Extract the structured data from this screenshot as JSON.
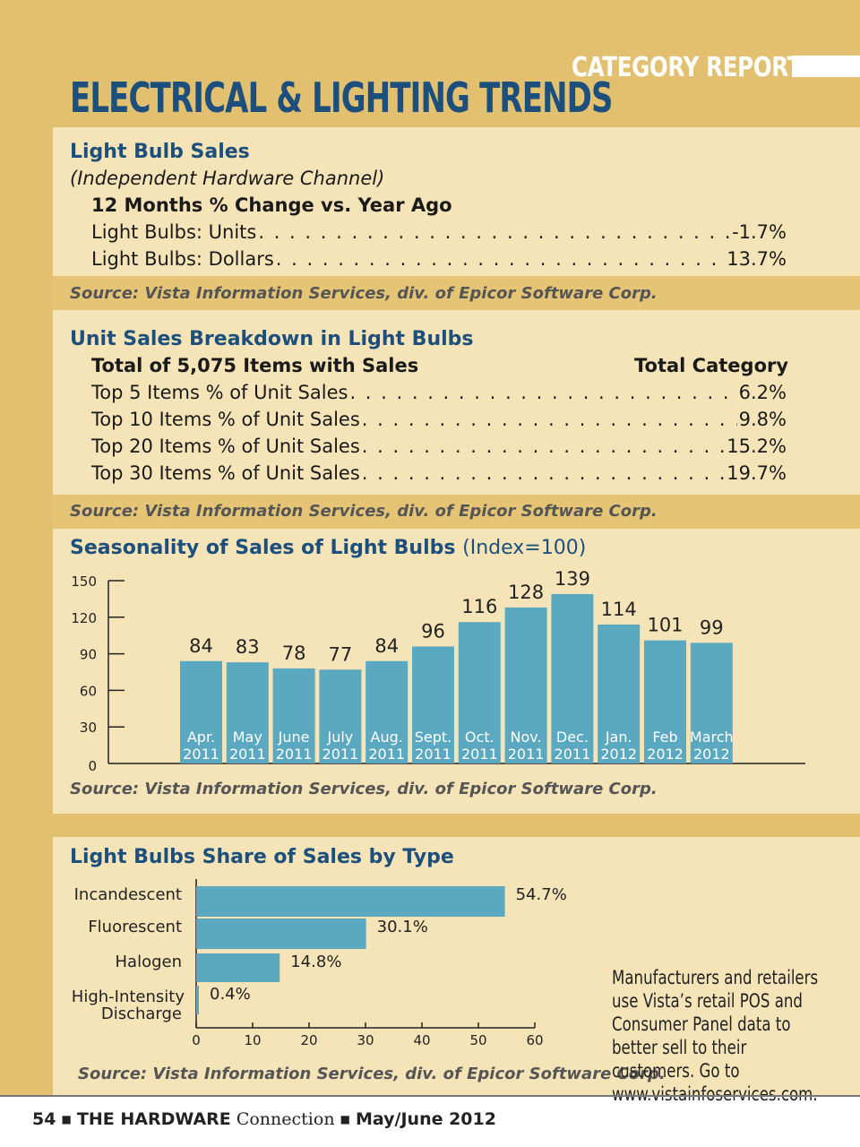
{
  "header": {
    "section_label": "CATEGORY REPORT",
    "title": "ELECTRICAL & LIGHTING TRENDS"
  },
  "bulb_sales": {
    "heading": "Light Bulb Sales",
    "subheading": "(Independent Hardware Channel)",
    "period_label": "12 Months % Change vs. Year Ago",
    "rows": [
      {
        "label": "Light Bulbs: Units",
        "value": "-1.7%"
      },
      {
        "label": "Light Bulbs: Dollars",
        "value": "13.7%"
      }
    ],
    "source": "Source: Vista Information Services, div. of Epicor Software Corp."
  },
  "unit_breakdown": {
    "heading": "Unit Sales Breakdown in Light Bulbs",
    "left_header": "Total of 5,075 Items with Sales",
    "right_header": "Total Category",
    "rows": [
      {
        "label": "Top 5 Items % of Unit Sales",
        "value": "6.2%"
      },
      {
        "label": "Top 10 Items % of Unit Sales",
        "value": "9.8%"
      },
      {
        "label": "Top 20 Items % of Unit Sales",
        "value": "15.2%"
      },
      {
        "label": "Top 30 Items % of Unit Sales",
        "value": "19.7%"
      }
    ],
    "source": "Source: Vista Information Services, div. of Epicor Software Corp."
  },
  "chart_data": [
    {
      "type": "bar",
      "title": "Seasonality of Sales of Light Bulbs",
      "subtitle": "(Index=100)",
      "categories": [
        [
          "Apr.",
          "2011"
        ],
        [
          "May",
          "2011"
        ],
        [
          "June",
          "2011"
        ],
        [
          "July",
          "2011"
        ],
        [
          "Aug.",
          "2011"
        ],
        [
          "Sept.",
          "2011"
        ],
        [
          "Oct.",
          "2011"
        ],
        [
          "Nov.",
          "2011"
        ],
        [
          "Dec.",
          "2011"
        ],
        [
          "Jan.",
          "2012"
        ],
        [
          "Feb",
          "2012"
        ],
        [
          "March",
          "2012"
        ]
      ],
      "values": [
        84,
        83,
        78,
        77,
        84,
        96,
        116,
        128,
        139,
        114,
        101,
        99
      ],
      "ylim": [
        0,
        150
      ],
      "yticks": [
        0,
        30,
        60,
        90,
        120,
        150
      ],
      "grid": false,
      "bar_color": "#5ba8c1",
      "source": "Source: Vista Information Services, div. of Epicor Software Corp."
    },
    {
      "type": "bar",
      "orientation": "horizontal",
      "title": "Light Bulbs Share of Sales by Type",
      "categories": [
        [
          "Incandescent"
        ],
        [
          "Fluorescent"
        ],
        [
          "Halogen"
        ],
        [
          "High-Intensity",
          "Discharge"
        ]
      ],
      "values": [
        54.7,
        30.1,
        14.8,
        0.4
      ],
      "value_labels": [
        "54.7%",
        "30.1%",
        "14.8%",
        "0.4%"
      ],
      "xlim": [
        0,
        60
      ],
      "xticks": [
        0,
        10,
        20,
        30,
        40,
        50,
        60
      ],
      "grid": false,
      "bar_color": "#5ba8c1",
      "source": "Source: Vista Information Services, div. of Epicor Software Corp."
    }
  ],
  "vista_note": "Manufacturers and retailers use Vista’s retail POS and Consumer Panel data to better sell to their customers. Go to www.vistainfoservices.com.",
  "footer": {
    "page": "54",
    "pub_bold": "THE HARDWARE",
    "pub_serif": "Connection",
    "issue": "May/June 2012"
  }
}
